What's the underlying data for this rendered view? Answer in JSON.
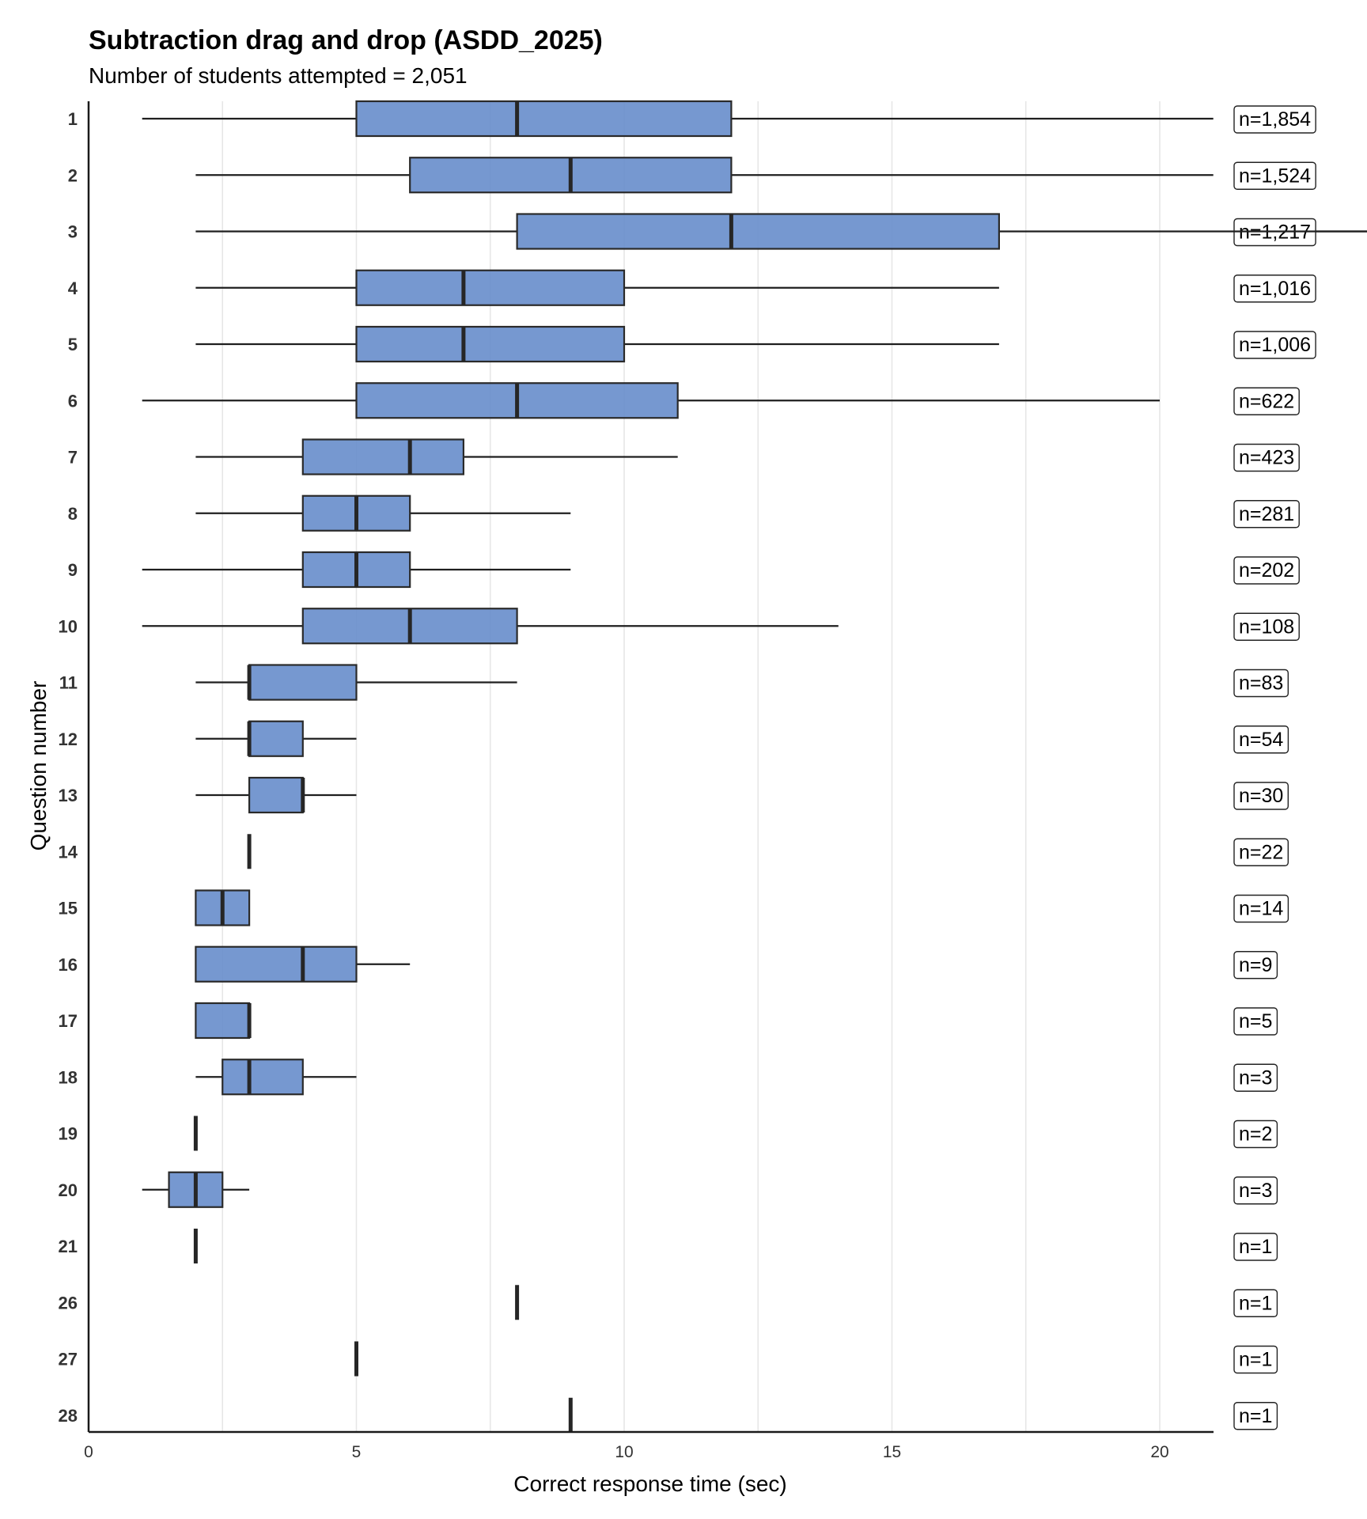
{
  "chart_data": {
    "type": "boxplot",
    "orientation": "horizontal",
    "title": "Subtraction drag and drop (ASDD_2025)",
    "subtitle": "Number of students attempted = 2,051",
    "xlabel": "Correct response time (sec)",
    "ylabel": "Question number",
    "xlim": [
      0,
      21
    ],
    "xticks": [
      0,
      5,
      10,
      15,
      20
    ],
    "grid": "vertical",
    "box_color": "#6a8fcc",
    "questions": [
      {
        "q": "1",
        "whisker_low": 1,
        "q1": 5,
        "median": 8,
        "q3": 12,
        "whisker_high": 21,
        "n_label": "n=1,854"
      },
      {
        "q": "2",
        "whisker_low": 2,
        "q1": 6,
        "median": 9,
        "q3": 12,
        "whisker_high": 21,
        "n_label": "n=1,524"
      },
      {
        "q": "3",
        "whisker_low": 2,
        "q1": 8,
        "median": 12,
        "q3": 17,
        "whisker_high": 24,
        "n_label": "n=1,217"
      },
      {
        "q": "4",
        "whisker_low": 2,
        "q1": 5,
        "median": 7,
        "q3": 10,
        "whisker_high": 17,
        "n_label": "n=1,016"
      },
      {
        "q": "5",
        "whisker_low": 2,
        "q1": 5,
        "median": 7,
        "q3": 10,
        "whisker_high": 17,
        "n_label": "n=1,006"
      },
      {
        "q": "6",
        "whisker_low": 1,
        "q1": 5,
        "median": 8,
        "q3": 11,
        "whisker_high": 20,
        "n_label": "n=622"
      },
      {
        "q": "7",
        "whisker_low": 2,
        "q1": 4,
        "median": 6,
        "q3": 7,
        "whisker_high": 11,
        "n_label": "n=423"
      },
      {
        "q": "8",
        "whisker_low": 2,
        "q1": 4,
        "median": 5,
        "q3": 6,
        "whisker_high": 9,
        "n_label": "n=281"
      },
      {
        "q": "9",
        "whisker_low": 1,
        "q1": 4,
        "median": 5,
        "q3": 6,
        "whisker_high": 9,
        "n_label": "n=202"
      },
      {
        "q": "10",
        "whisker_low": 1,
        "q1": 4,
        "median": 6,
        "q3": 8,
        "whisker_high": 14,
        "n_label": "n=108"
      },
      {
        "q": "11",
        "whisker_low": 2,
        "q1": 3,
        "median": 3,
        "q3": 5,
        "whisker_high": 8,
        "n_label": "n=83"
      },
      {
        "q": "12",
        "whisker_low": 2,
        "q1": 3,
        "median": 3,
        "q3": 4,
        "whisker_high": 5,
        "n_label": "n=54"
      },
      {
        "q": "13",
        "whisker_low": 2,
        "q1": 3,
        "median": 4,
        "q3": 4,
        "whisker_high": 5,
        "n_label": "n=30"
      },
      {
        "q": "14",
        "whisker_low": 3,
        "q1": 3,
        "median": 3,
        "q3": 3,
        "whisker_high": 3,
        "n_label": "n=22"
      },
      {
        "q": "15",
        "whisker_low": 2,
        "q1": 2,
        "median": 2.5,
        "q3": 3,
        "whisker_high": 3,
        "n_label": "n=14"
      },
      {
        "q": "16",
        "whisker_low": 2,
        "q1": 2,
        "median": 4,
        "q3": 5,
        "whisker_high": 6,
        "n_label": "n=9"
      },
      {
        "q": "17",
        "whisker_low": 2,
        "q1": 2,
        "median": 3,
        "q3": 3,
        "whisker_high": 3,
        "n_label": "n=5"
      },
      {
        "q": "18",
        "whisker_low": 2,
        "q1": 2.5,
        "median": 3,
        "q3": 4,
        "whisker_high": 5,
        "n_label": "n=3"
      },
      {
        "q": "19",
        "whisker_low": 2,
        "q1": 2,
        "median": 2,
        "q3": 2,
        "whisker_high": 2,
        "n_label": "n=2"
      },
      {
        "q": "20",
        "whisker_low": 1,
        "q1": 1.5,
        "median": 2,
        "q3": 2.5,
        "whisker_high": 3,
        "n_label": "n=3"
      },
      {
        "q": "21",
        "whisker_low": 2,
        "q1": 2,
        "median": 2,
        "q3": 2,
        "whisker_high": 2,
        "n_label": "n=1"
      },
      {
        "q": "26",
        "whisker_low": 8,
        "q1": 8,
        "median": 8,
        "q3": 8,
        "whisker_high": 8,
        "n_label": "n=1"
      },
      {
        "q": "27",
        "whisker_low": 5,
        "q1": 5,
        "median": 5,
        "q3": 5,
        "whisker_high": 5,
        "n_label": "n=1"
      },
      {
        "q": "28",
        "whisker_low": 9,
        "q1": 9,
        "median": 9,
        "q3": 9,
        "whisker_high": 9,
        "n_label": "n=1"
      }
    ]
  }
}
